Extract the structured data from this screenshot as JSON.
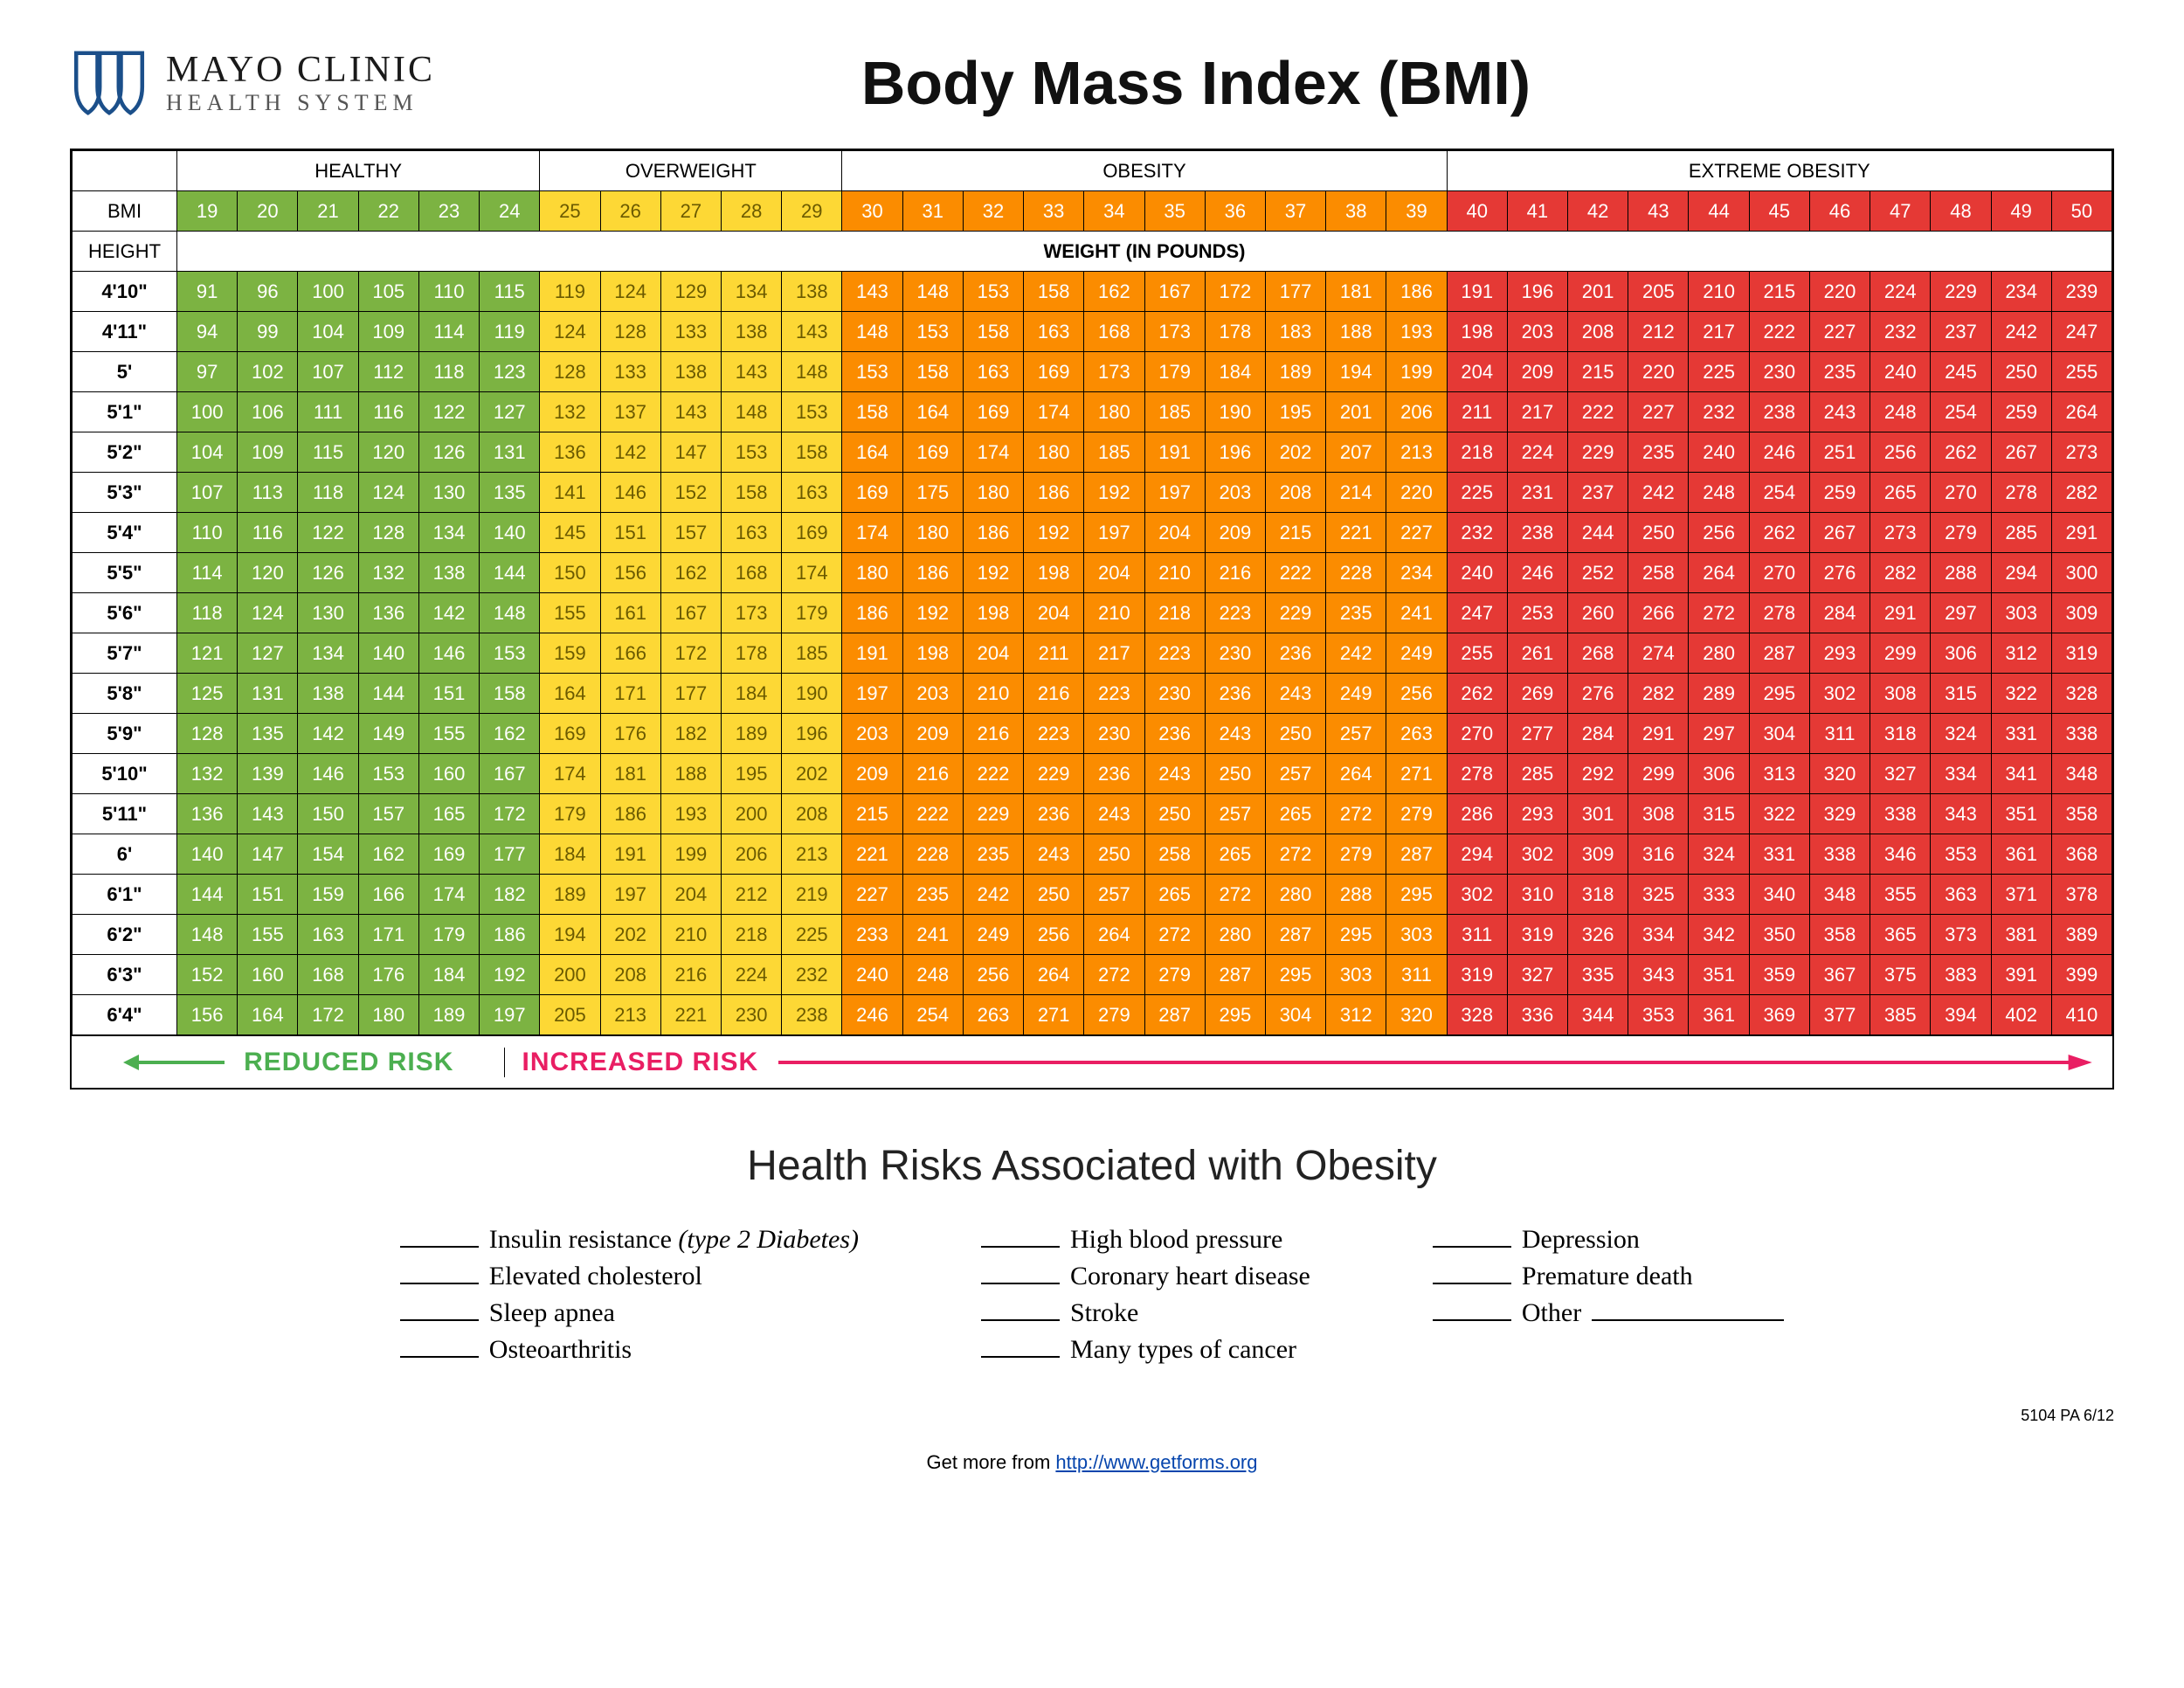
{
  "logo": {
    "main": "MAYO CLINIC",
    "sub": "HEALTH SYSTEM",
    "stroke_color": "#1b4f8a"
  },
  "title": "Body Mass Index (BMI)",
  "categories": [
    {
      "label": "HEALTHY",
      "span": 6,
      "color": "#7cb342",
      "text": "#ffffff"
    },
    {
      "label": "OVERWEIGHT",
      "span": 5,
      "color": "#fdd835",
      "text": "#6b5a00"
    },
    {
      "label": "OBESITY",
      "span": 10,
      "color": "#fb8c00",
      "text": "#ffffff"
    },
    {
      "label": "EXTREME OBESITY",
      "span": 11,
      "color": "#e53935",
      "text": "#ffffff"
    }
  ],
  "axis": {
    "bmi_label": "BMI",
    "height_label": "HEIGHT",
    "weight_label": "WEIGHT  (IN POUNDS)"
  },
  "bmi_values": [
    19,
    20,
    21,
    22,
    23,
    24,
    25,
    26,
    27,
    28,
    29,
    30,
    31,
    32,
    33,
    34,
    35,
    36,
    37,
    38,
    39,
    40,
    41,
    42,
    43,
    44,
    45,
    46,
    47,
    48,
    49,
    50
  ],
  "heights": [
    "4'10\"",
    "4'11\"",
    "5'",
    "5'1\"",
    "5'2\"",
    "5'3\"",
    "5'4\"",
    "5'5\"",
    "5'6\"",
    "5'7\"",
    "5'8\"",
    "5'9\"",
    "5'10\"",
    "5'11\"",
    "6'",
    "6'1\"",
    "6'2\"",
    "6'3\"",
    "6'4\""
  ],
  "rows": [
    [
      91,
      96,
      100,
      105,
      110,
      115,
      119,
      124,
      129,
      134,
      138,
      143,
      148,
      153,
      158,
      162,
      167,
      172,
      177,
      181,
      186,
      191,
      196,
      201,
      205,
      210,
      215,
      220,
      224,
      229,
      234,
      239
    ],
    [
      94,
      99,
      104,
      109,
      114,
      119,
      124,
      128,
      133,
      138,
      143,
      148,
      153,
      158,
      163,
      168,
      173,
      178,
      183,
      188,
      193,
      198,
      203,
      208,
      212,
      217,
      222,
      227,
      232,
      237,
      242,
      247
    ],
    [
      97,
      102,
      107,
      112,
      118,
      123,
      128,
      133,
      138,
      143,
      148,
      153,
      158,
      163,
      169,
      173,
      179,
      184,
      189,
      194,
      199,
      204,
      209,
      215,
      220,
      225,
      230,
      235,
      240,
      245,
      250,
      255
    ],
    [
      100,
      106,
      111,
      116,
      122,
      127,
      132,
      137,
      143,
      148,
      153,
      158,
      164,
      169,
      174,
      180,
      185,
      190,
      195,
      201,
      206,
      211,
      217,
      222,
      227,
      232,
      238,
      243,
      248,
      254,
      259,
      264
    ],
    [
      104,
      109,
      115,
      120,
      126,
      131,
      136,
      142,
      147,
      153,
      158,
      164,
      169,
      174,
      180,
      185,
      191,
      196,
      202,
      207,
      213,
      218,
      224,
      229,
      235,
      240,
      246,
      251,
      256,
      262,
      267,
      273
    ],
    [
      107,
      113,
      118,
      124,
      130,
      135,
      141,
      146,
      152,
      158,
      163,
      169,
      175,
      180,
      186,
      192,
      197,
      203,
      208,
      214,
      220,
      225,
      231,
      237,
      242,
      248,
      254,
      259,
      265,
      270,
      278,
      282
    ],
    [
      110,
      116,
      122,
      128,
      134,
      140,
      145,
      151,
      157,
      163,
      169,
      174,
      180,
      186,
      192,
      197,
      204,
      209,
      215,
      221,
      227,
      232,
      238,
      244,
      250,
      256,
      262,
      267,
      273,
      279,
      285,
      291
    ],
    [
      114,
      120,
      126,
      132,
      138,
      144,
      150,
      156,
      162,
      168,
      174,
      180,
      186,
      192,
      198,
      204,
      210,
      216,
      222,
      228,
      234,
      240,
      246,
      252,
      258,
      264,
      270,
      276,
      282,
      288,
      294,
      300
    ],
    [
      118,
      124,
      130,
      136,
      142,
      148,
      155,
      161,
      167,
      173,
      179,
      186,
      192,
      198,
      204,
      210,
      218,
      223,
      229,
      235,
      241,
      247,
      253,
      260,
      266,
      272,
      278,
      284,
      291,
      297,
      303,
      309
    ],
    [
      121,
      127,
      134,
      140,
      146,
      153,
      159,
      166,
      172,
      178,
      185,
      191,
      198,
      204,
      211,
      217,
      223,
      230,
      236,
      242,
      249,
      255,
      261,
      268,
      274,
      280,
      287,
      293,
      299,
      306,
      312,
      319
    ],
    [
      125,
      131,
      138,
      144,
      151,
      158,
      164,
      171,
      177,
      184,
      190,
      197,
      203,
      210,
      216,
      223,
      230,
      236,
      243,
      249,
      256,
      262,
      269,
      276,
      282,
      289,
      295,
      302,
      308,
      315,
      322,
      328
    ],
    [
      128,
      135,
      142,
      149,
      155,
      162,
      169,
      176,
      182,
      189,
      196,
      203,
      209,
      216,
      223,
      230,
      236,
      243,
      250,
      257,
      263,
      270,
      277,
      284,
      291,
      297,
      304,
      311,
      318,
      324,
      331,
      338
    ],
    [
      132,
      139,
      146,
      153,
      160,
      167,
      174,
      181,
      188,
      195,
      202,
      209,
      216,
      222,
      229,
      236,
      243,
      250,
      257,
      264,
      271,
      278,
      285,
      292,
      299,
      306,
      313,
      320,
      327,
      334,
      341,
      348
    ],
    [
      136,
      143,
      150,
      157,
      165,
      172,
      179,
      186,
      193,
      200,
      208,
      215,
      222,
      229,
      236,
      243,
      250,
      257,
      265,
      272,
      279,
      286,
      293,
      301,
      308,
      315,
      322,
      329,
      338,
      343,
      351,
      358
    ],
    [
      140,
      147,
      154,
      162,
      169,
      177,
      184,
      191,
      199,
      206,
      213,
      221,
      228,
      235,
      243,
      250,
      258,
      265,
      272,
      279,
      287,
      294,
      302,
      309,
      316,
      324,
      331,
      338,
      346,
      353,
      361,
      368
    ],
    [
      144,
      151,
      159,
      166,
      174,
      182,
      189,
      197,
      204,
      212,
      219,
      227,
      235,
      242,
      250,
      257,
      265,
      272,
      280,
      288,
      295,
      302,
      310,
      318,
      325,
      333,
      340,
      348,
      355,
      363,
      371,
      378
    ],
    [
      148,
      155,
      163,
      171,
      179,
      186,
      194,
      202,
      210,
      218,
      225,
      233,
      241,
      249,
      256,
      264,
      272,
      280,
      287,
      295,
      303,
      311,
      319,
      326,
      334,
      342,
      350,
      358,
      365,
      373,
      381,
      389
    ],
    [
      152,
      160,
      168,
      176,
      184,
      192,
      200,
      208,
      216,
      224,
      232,
      240,
      248,
      256,
      264,
      272,
      279,
      287,
      295,
      303,
      311,
      319,
      327,
      335,
      343,
      351,
      359,
      367,
      375,
      383,
      391,
      399
    ],
    [
      156,
      164,
      172,
      180,
      189,
      197,
      205,
      213,
      221,
      230,
      238,
      246,
      254,
      263,
      271,
      279,
      287,
      295,
      304,
      312,
      320,
      328,
      336,
      344,
      353,
      361,
      369,
      377,
      385,
      394,
      402,
      410
    ]
  ],
  "risk_bar": {
    "reduced": "REDUCED RISK",
    "increased": "INCREASED RISK",
    "first_seg_width_cols": 7
  },
  "risks": {
    "title": "Health Risks Associated with Obesity",
    "col1": [
      {
        "text": "Insulin resistance ",
        "suffix_italic": "(type 2 Diabetes)"
      },
      {
        "text": "Elevated cholesterol"
      },
      {
        "text": "Sleep apnea"
      },
      {
        "text": "Osteoarthritis"
      }
    ],
    "col2": [
      {
        "text": "High blood pressure"
      },
      {
        "text": "Coronary heart disease"
      },
      {
        "text": "Stroke"
      },
      {
        "text": "Many types of cancer"
      }
    ],
    "col3": [
      {
        "text": "Depression"
      },
      {
        "text": "Premature death"
      },
      {
        "text": "Other",
        "trailing_blank": true
      }
    ]
  },
  "footer_code": "5104 PA  6/12",
  "getmore": {
    "prefix": "Get more from ",
    "link_text": "http://www.getforms.org"
  }
}
